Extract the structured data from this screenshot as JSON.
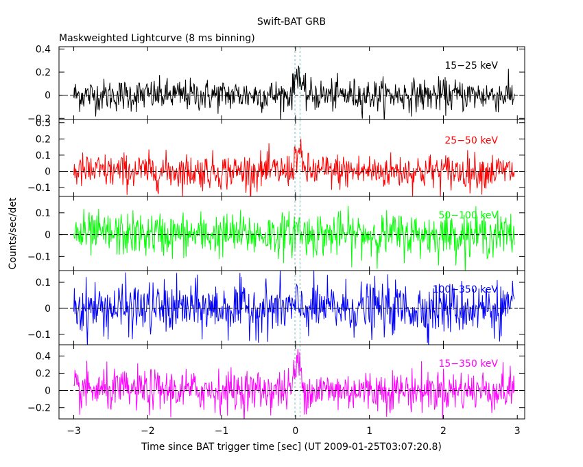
{
  "chart_data": {
    "type": "line",
    "title": "Swift-BAT GRB",
    "subtitle": "Maskweighted Lightcurve (8 ms binning)",
    "xlabel": "Time since BAT trigger time [sec] (UT 2009-01-25T03:07:20.8)",
    "ylabel": "Counts/sec/det",
    "xlim": [
      -3.2,
      3.1
    ],
    "x_ticks": [
      -3,
      -2,
      -1,
      0,
      1,
      2,
      3
    ],
    "x_tick_labels": [
      "−3",
      "−2",
      "−1",
      "0",
      "1",
      "2",
      "3"
    ],
    "x_range": [
      -3.0,
      2.96
    ],
    "bin_width_s": 0.008,
    "marker_x": [
      -0.008,
      0.06
    ],
    "panels": [
      {
        "name": "15−25 keV",
        "color": "#000000",
        "ylim": [
          -0.21,
          0.42
        ],
        "y_ticks": [
          -0.2,
          0,
          0.2,
          0.4
        ],
        "y_tick_labels": [
          "−0.2",
          "0",
          "0.2",
          "0.4"
        ],
        "noise_sigma": 0.07,
        "peak": {
          "x": 0.03,
          "height": 0.22,
          "width": 0.05
        }
      },
      {
        "name": "25−50 keV",
        "color": "#ff0000",
        "ylim": [
          -0.155,
          0.32
        ],
        "y_ticks": [
          -0.1,
          0,
          0.1,
          0.2,
          0.3
        ],
        "y_tick_labels": [
          "−0.1",
          "0",
          "0.1",
          "0.2",
          "0.3"
        ],
        "noise_sigma": 0.055,
        "peak": {
          "x": 0.03,
          "height": 0.12,
          "width": 0.06
        }
      },
      {
        "name": "50−100 keV",
        "color": "#00ff00",
        "ylim": [
          -0.165,
          0.175
        ],
        "y_ticks": [
          -0.1,
          0,
          0.1
        ],
        "y_tick_labels": [
          "−0.1",
          "0",
          "0.1"
        ],
        "noise_sigma": 0.05,
        "peak": {
          "x": 0.03,
          "height": 0.03,
          "width": 0.05
        }
      },
      {
        "name": "100−350 keV",
        "color": "#0000ff",
        "ylim": [
          -0.14,
          0.145
        ],
        "y_ticks": [
          -0.1,
          0,
          0.1
        ],
        "y_tick_labels": [
          "−0.1",
          "0",
          "0.1"
        ],
        "noise_sigma": 0.05,
        "peak": {
          "x": 0.03,
          "height": 0.0,
          "width": 0.05
        }
      },
      {
        "name": "15−350 keV",
        "color": "#ff00ff",
        "ylim": [
          -0.33,
          0.53
        ],
        "y_ticks": [
          -0.2,
          0,
          0.2,
          0.4
        ],
        "y_tick_labels": [
          "−0.2",
          "0",
          "0.2",
          "0.4"
        ],
        "noise_sigma": 0.12,
        "peak": {
          "x": 0.03,
          "height": 0.32,
          "width": 0.06
        }
      }
    ]
  }
}
